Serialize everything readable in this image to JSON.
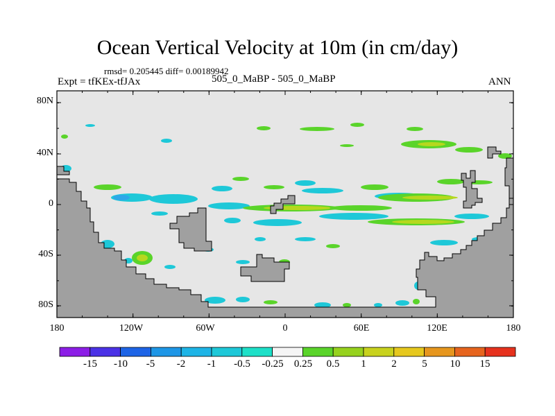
{
  "header": {
    "title": "Ocean Vertical Velocity at 10m (in cm/day)",
    "stats": "rmsd= 0.205445 diff= 0.00189942",
    "experiment": "Expt = tfKEx-tfJAx",
    "case_label": "505_0_MaBP - 505_0_MaBP",
    "season": "ANN"
  },
  "map": {
    "lat_labels": [
      "80N",
      "40N",
      "0",
      "40S",
      "80S"
    ],
    "lon_labels": [
      "180",
      "120W",
      "60W",
      "0",
      "60E",
      "120E",
      "180"
    ],
    "colors": {
      "ocean_background": "#e6e6e6",
      "land": "#a0a0a0",
      "cyan_negative": "#1ec8d8",
      "light_blue_negative": "#2ea8e8",
      "green_positive": "#5ad42a",
      "yellow_green_positive": "#b6d81e"
    }
  },
  "colorbar": {
    "labels": [
      "-15",
      "-10",
      "-5",
      "-2",
      "-1",
      "-0.5",
      "-0.25",
      "0.25",
      "0.5",
      "1",
      "2",
      "5",
      "10",
      "15"
    ],
    "colors": [
      "#8c1ee6",
      "#4b32e6",
      "#1e64e6",
      "#1e96e6",
      "#1eb4e6",
      "#1ec8d8",
      "#1ee0c8",
      "#f5f5f5",
      "#5ad42a",
      "#96d21e",
      "#c8d21e",
      "#e6c81e",
      "#e6961e",
      "#e6641e",
      "#e6321e"
    ]
  }
}
